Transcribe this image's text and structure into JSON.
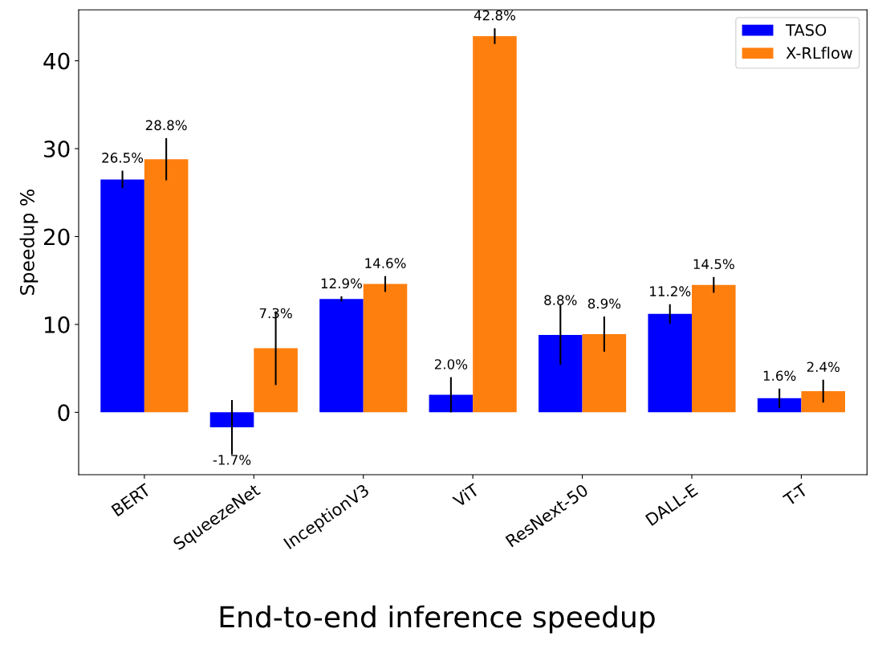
{
  "chart_data": {
    "type": "bar",
    "ylabel": "Speedup %",
    "categories": [
      "BERT",
      "SqueezeNet",
      "InceptionV3",
      "ViT",
      "ResNext-50",
      "DALL-E",
      "T-T"
    ],
    "series": [
      {
        "name": "TASO",
        "color": "#0000ff",
        "values": [
          26.5,
          -1.7,
          12.9,
          2.0,
          8.8,
          11.2,
          1.6
        ],
        "errors": [
          1.0,
          3.1,
          0.3,
          2.0,
          3.4,
          1.1,
          1.1
        ],
        "value_labels": [
          "26.5%",
          "-1.7%",
          "12.9%",
          "2.0%",
          "8.8%",
          "11.2%",
          "1.6%"
        ]
      },
      {
        "name": "X-RLflow",
        "color": "#ff7f0e",
        "values": [
          28.8,
          7.3,
          14.6,
          42.8,
          8.9,
          14.5,
          2.4
        ],
        "errors": [
          2.4,
          4.2,
          0.9,
          0.9,
          2.0,
          0.9,
          1.3
        ],
        "value_labels": [
          "28.8%",
          "7.3%",
          "14.6%",
          "42.8%",
          "8.9%",
          "14.5%",
          "2.4%"
        ]
      }
    ],
    "ylim": [
      -7.1,
      45.8
    ],
    "yticks": [
      0,
      10,
      20,
      30,
      40
    ],
    "legend": "top right",
    "grid": false,
    "annotations": [
      "End-to-end inference speedup"
    ]
  }
}
